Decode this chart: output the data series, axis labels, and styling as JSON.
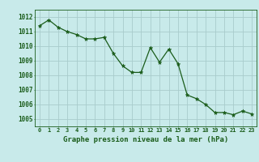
{
  "x": [
    0,
    1,
    2,
    3,
    4,
    5,
    6,
    7,
    8,
    9,
    10,
    11,
    12,
    13,
    14,
    15,
    16,
    17,
    18,
    19,
    20,
    21,
    22,
    23
  ],
  "y": [
    1011.4,
    1011.8,
    1011.3,
    1011.0,
    1010.8,
    1010.5,
    1010.5,
    1010.6,
    1009.5,
    1008.65,
    1008.2,
    1008.2,
    1009.9,
    1008.9,
    1009.8,
    1008.8,
    1006.65,
    1006.4,
    1006.0,
    1005.45,
    1005.45,
    1005.3,
    1005.55,
    1005.35
  ],
  "ylim": [
    1004.5,
    1012.5
  ],
  "xlim": [
    -0.5,
    23.5
  ],
  "yticks": [
    1005,
    1006,
    1007,
    1008,
    1009,
    1010,
    1011,
    1012
  ],
  "xticks": [
    0,
    1,
    2,
    3,
    4,
    5,
    6,
    7,
    8,
    9,
    10,
    11,
    12,
    13,
    14,
    15,
    16,
    17,
    18,
    19,
    20,
    21,
    22,
    23
  ],
  "line_color": "#1a5c1a",
  "marker_color": "#1a5c1a",
  "bg_color": "#c8eaea",
  "grid_color": "#a8cccc",
  "xlabel": "Graphe pression niveau de la mer (hPa)",
  "xlabel_color": "#1a5c1a",
  "tick_color": "#1a5c1a",
  "axis_color": "#1a5c1a",
  "label_fontsize": 6.5,
  "tick_fontsize": 5.0,
  "ytick_fontsize": 5.5
}
